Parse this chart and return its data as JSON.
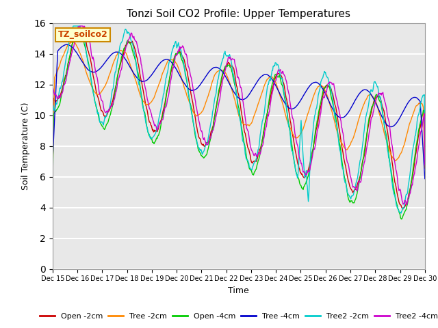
{
  "title": "Tonzi Soil CO2 Profile: Upper Temperatures",
  "xlabel": "Time",
  "ylabel": "Soil Temperature (C)",
  "ylim": [
    0,
    16
  ],
  "yticks": [
    0,
    2,
    4,
    6,
    8,
    10,
    12,
    14,
    16
  ],
  "plot_background": "#e8e8e8",
  "grid_color": "white",
  "annotation_text": "TZ_soilco2",
  "annotation_bg": "#ffffcc",
  "annotation_border": "#cc8800",
  "legend_entries": [
    "Open -2cm",
    "Tree -2cm",
    "Open -4cm",
    "Tree -4cm",
    "Tree2 -2cm",
    "Tree2 -4cm"
  ],
  "line_colors": [
    "#cc0000",
    "#ff8800",
    "#00cc00",
    "#0000cc",
    "#00cccc",
    "#cc00cc"
  ],
  "xtick_labels": [
    "Dec 15",
    "Dec 16",
    "Dec 17",
    "Dec 18",
    "Dec 19",
    "Dec 20",
    "Dec 21",
    "Dec 22",
    "Dec 23",
    "Dec 24",
    "Dec 25",
    "Dec 26",
    "Dec 27",
    "Dec 28",
    "Dec 29",
    "Dec 30"
  ],
  "figsize": [
    6.4,
    4.8
  ],
  "dpi": 100
}
